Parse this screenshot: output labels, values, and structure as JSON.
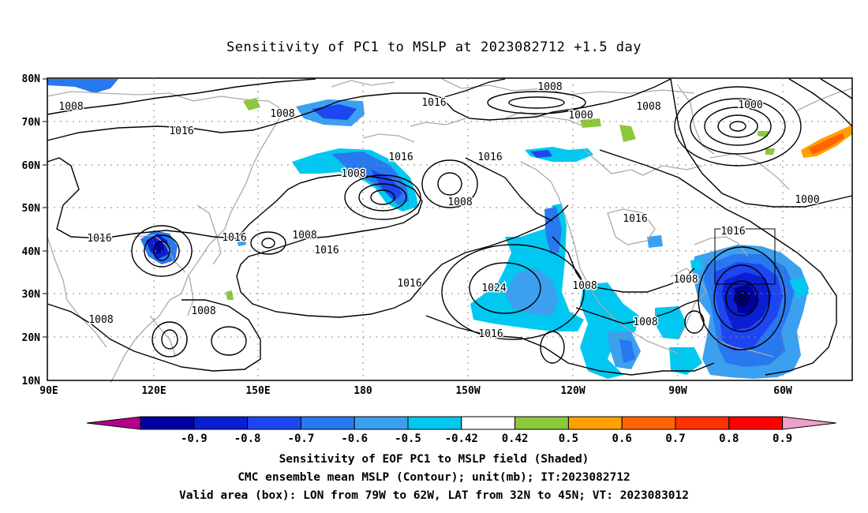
{
  "title": "Sensitivity of PC1 to MSLP at 2023082712 +1.5 day",
  "lat_labels": [
    "80N",
    "70N",
    "60N",
    "50N",
    "40N",
    "30N",
    "20N",
    "10N"
  ],
  "lon_labels": [
    "90E",
    "120E",
    "150E",
    "180",
    "150W",
    "120W",
    "90W",
    "60W"
  ],
  "contour_labels": {
    "c1008_a": "1008",
    "c1008_b": "1008",
    "c1008_c": "1008",
    "c1008_d": "1008",
    "c1008_e": "1008",
    "c1008_f": "1008",
    "c1008_g": "1008",
    "c1008_h": "1008",
    "c1008_i": "1008",
    "c1008_j": "1008",
    "c1008_k": "1008",
    "c1008_l": "1008",
    "c1000_a": "1000",
    "c1000_b": "1000",
    "c1000_c": "1000",
    "c1016_a": "1016",
    "c1016_b": "1016",
    "c1016_c": "1016",
    "c1016_d": "1016",
    "c1016_e": "1016",
    "c1016_f": "1016",
    "c1016_g": "1016",
    "c1016_h": "1016",
    "c1016_i": "1016",
    "c1016_j": "1016",
    "c1016_k": "1016",
    "c1024": "1024"
  },
  "colorbar": {
    "labels": [
      "-0.9",
      "-0.8",
      "-0.7",
      "-0.6",
      "-0.5",
      "-0.42",
      "0.42",
      "0.5",
      "0.6",
      "0.7",
      "0.8",
      "0.9"
    ],
    "colors": [
      "#b4008c",
      "#0000a0",
      "#0a1ed2",
      "#1e46f0",
      "#2878f0",
      "#3ca0f0",
      "#00c8f0",
      "#ffffff",
      "#8cc83c",
      "#ffa000",
      "#ff6400",
      "#ff3200",
      "#ff0000",
      "#f0a0c8"
    ]
  },
  "footer": {
    "line1": "Sensitivity of EOF PC1 to MSLP field (Shaded)",
    "line2": "CMC ensemble mean MSLP (Contour); unit(mb); IT:2023082712",
    "line3": "Valid area (box): LON from 79W to 62W, LAT from 32N to 45N; VT: 2023083012"
  },
  "valid_box": {
    "lon_west": -79,
    "lon_east": -62,
    "lat_south": 32,
    "lat_north": 45
  }
}
